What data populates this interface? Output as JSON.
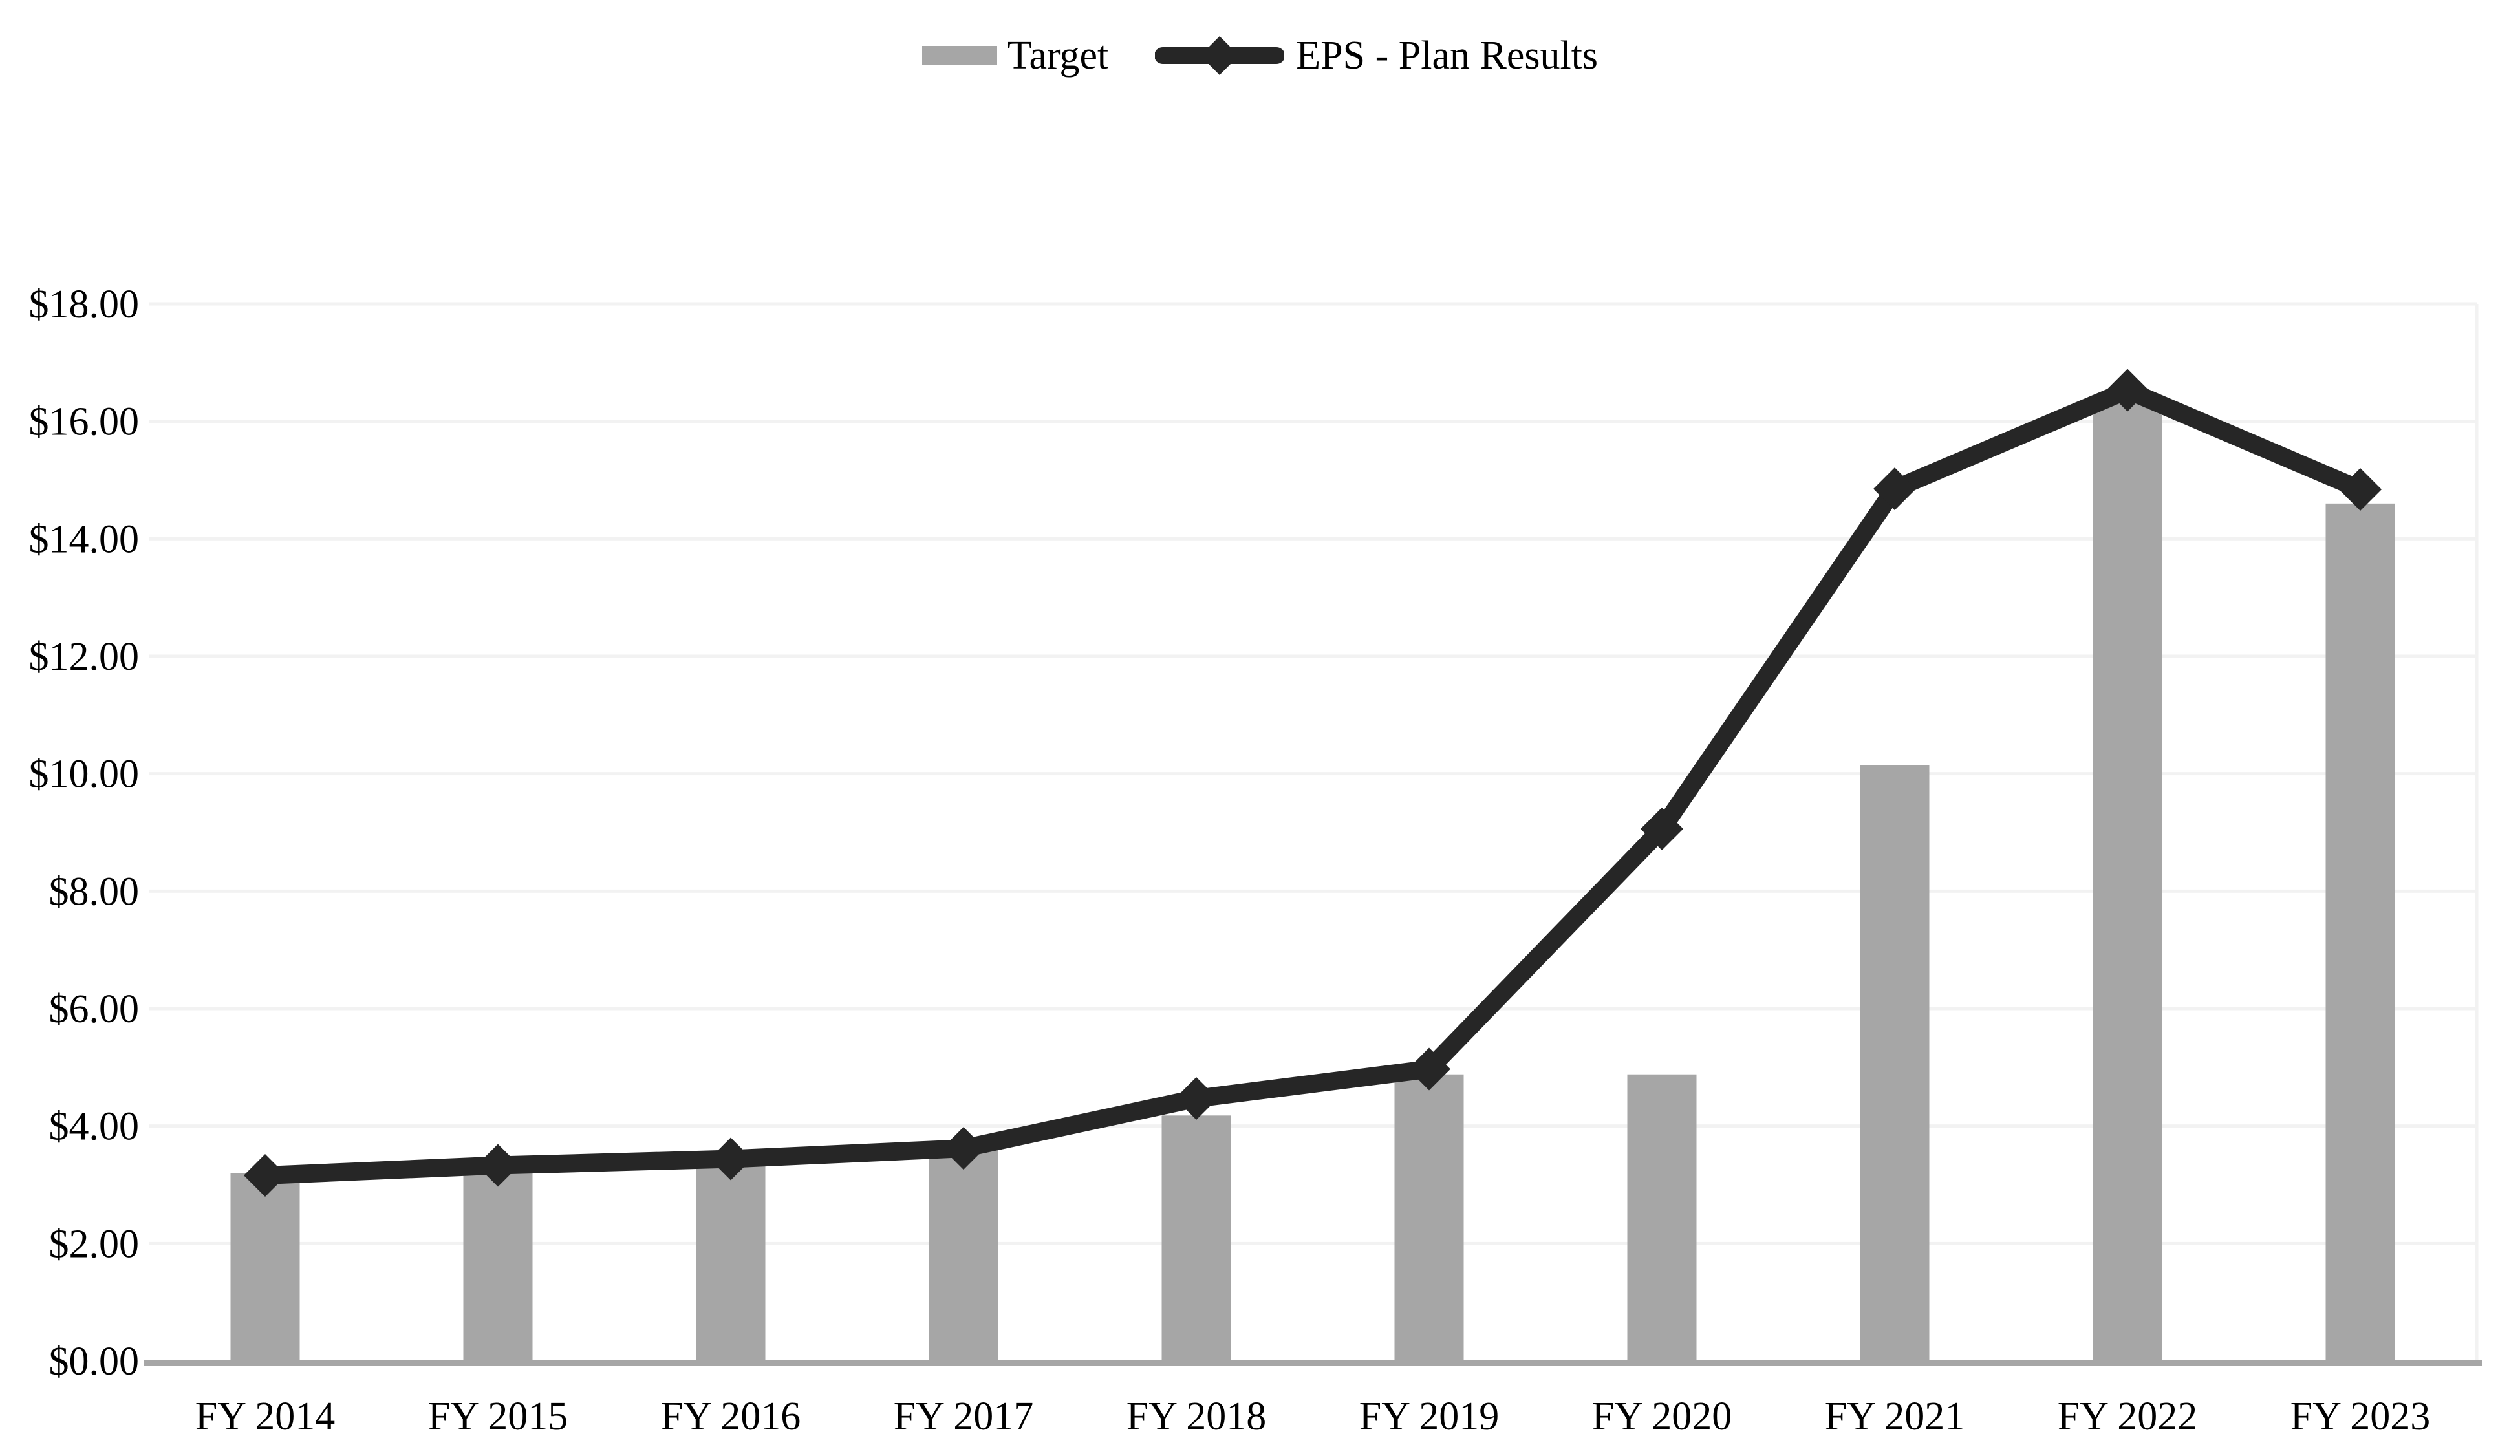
{
  "legend": {
    "target_label": "Target",
    "eps_label": "EPS - Plan Results"
  },
  "colors": {
    "background": "#ffffff",
    "bar": "#a6a6a6",
    "line": "#262626",
    "marker": "#262626",
    "gridline": "#f2f2f2",
    "axis_line": "#a6a6a6",
    "text": "#000000"
  },
  "chart_data": {
    "type": "combo bar+line",
    "title": "",
    "xlabel": "",
    "ylabel": "",
    "categories": [
      "FY 2014",
      "FY 2015",
      "FY 2016",
      "FY 2017",
      "FY 2018",
      "FY 2019",
      "FY 2020",
      "FY 2021",
      "FY 2022",
      "FY 2023"
    ],
    "series": [
      {
        "name": "Target",
        "type": "bar",
        "values": [
          3.2,
          3.44,
          3.55,
          3.63,
          4.18,
          4.88,
          4.88,
          10.14,
          16.4,
          14.6
        ]
      },
      {
        "name": "EPS - Plan Results",
        "type": "line",
        "marker": "diamond",
        "values": [
          3.16,
          3.33,
          3.44,
          3.62,
          4.47,
          4.97,
          9.06,
          14.85,
          16.53,
          14.84
        ]
      }
    ],
    "ylim": [
      0,
      18
    ],
    "ytick_step": 2,
    "ytick_labels": [
      "$0.00",
      "$2.00",
      "$4.00",
      "$6.00",
      "$8.00",
      "$10.00",
      "$12.00",
      "$14.00",
      "$16.00",
      "$18.00"
    ],
    "grid": "horizontal gridlines on, light gray",
    "legend_position": "top-center"
  }
}
